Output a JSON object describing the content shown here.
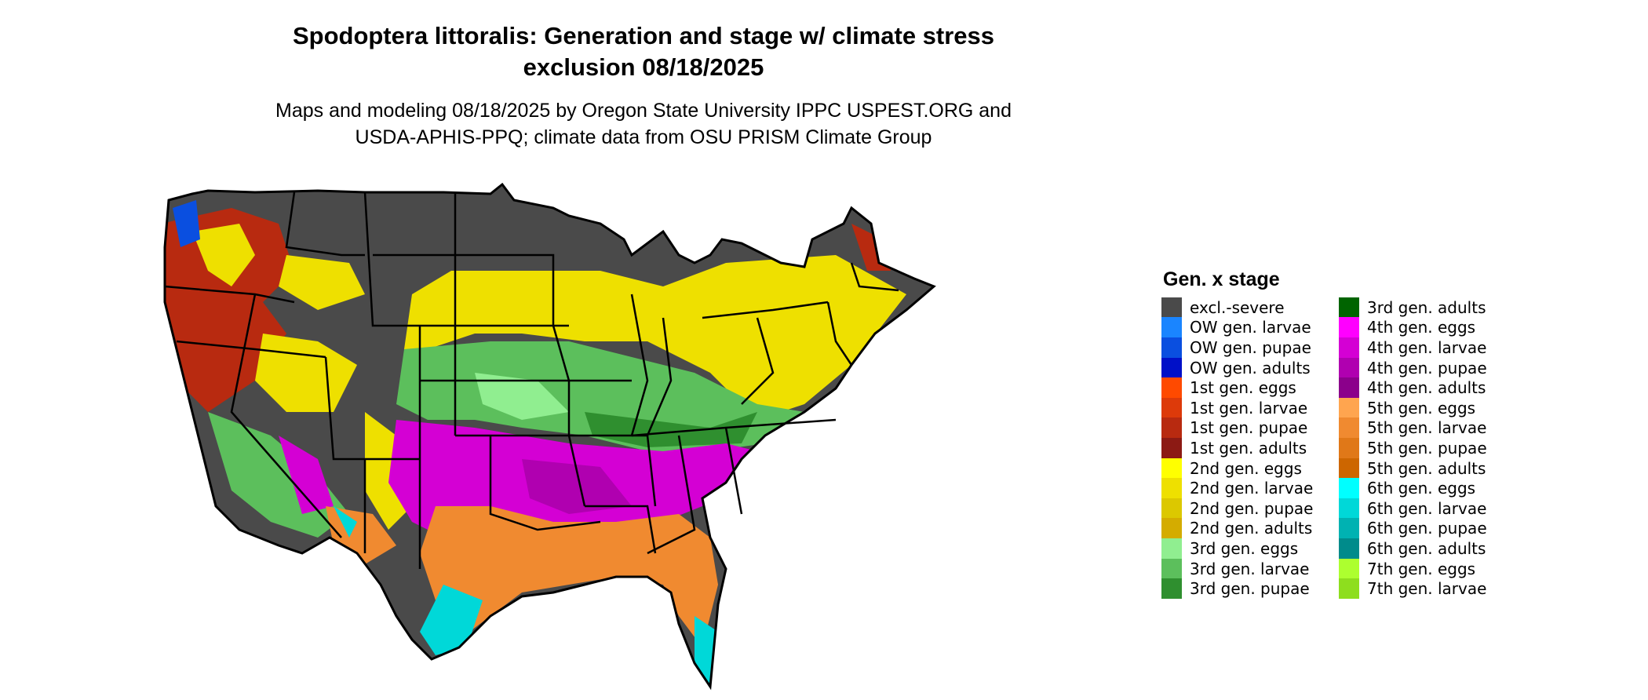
{
  "title": {
    "line1": "Spodoptera littoralis: Generation and stage w/ climate stress",
    "line2": "exclusion 08/18/2025"
  },
  "subtitle": {
    "line1": "Maps and modeling 08/18/2025 by Oregon State University IPPC USPEST.ORG and",
    "line2": "USDA-APHIS-PPQ; climate data from OSU PRISM Climate Group"
  },
  "legend": {
    "title": "Gen. x stage",
    "items": [
      {
        "label": "excl.-severe",
        "color": "#4a4a4a"
      },
      {
        "label": "OW gen. larvae",
        "color": "#1a85ff"
      },
      {
        "label": "OW gen. pupae",
        "color": "#0a4fe0"
      },
      {
        "label": "OW gen. adults",
        "color": "#0010c8"
      },
      {
        "label": "1st gen. eggs",
        "color": "#ff4a00"
      },
      {
        "label": "1st gen. larvae",
        "color": "#dd3a0a"
      },
      {
        "label": "1st gen. pupae",
        "color": "#b82a10"
      },
      {
        "label": "1st gen. adults",
        "color": "#8c1a14"
      },
      {
        "label": "2nd gen. eggs",
        "color": "#ffff00"
      },
      {
        "label": "2nd gen. larvae",
        "color": "#eee000"
      },
      {
        "label": "2nd gen. pupae",
        "color": "#dcc800"
      },
      {
        "label": "2nd gen. adults",
        "color": "#d4ac00"
      },
      {
        "label": "3rd gen. eggs",
        "color": "#90ee90"
      },
      {
        "label": "3rd gen. larvae",
        "color": "#5cbf5c"
      },
      {
        "label": "3rd gen. pupae",
        "color": "#2f8f2f"
      },
      {
        "label": "3rd gen. adults",
        "color": "#006400"
      },
      {
        "label": "4th gen. eggs",
        "color": "#ff00ff"
      },
      {
        "label": "4th gen. larvae",
        "color": "#d400d4"
      },
      {
        "label": "4th gen. pupae",
        "color": "#b000b0"
      },
      {
        "label": "4th gen. adults",
        "color": "#8b008b"
      },
      {
        "label": "5th gen. eggs",
        "color": "#ffa54f"
      },
      {
        "label": "5th gen. larvae",
        "color": "#f08a30"
      },
      {
        "label": "5th gen. pupae",
        "color": "#e07818"
      },
      {
        "label": "5th gen. adults",
        "color": "#cd6600"
      },
      {
        "label": "6th gen. eggs",
        "color": "#00ffff"
      },
      {
        "label": "6th gen. larvae",
        "color": "#00d8d8"
      },
      {
        "label": "6th gen. pupae",
        "color": "#00b2b2"
      },
      {
        "label": "6th gen. adults",
        "color": "#008b8b"
      },
      {
        "label": "7th gen. eggs",
        "color": "#adff2f"
      },
      {
        "label": "7th gen. larvae",
        "color": "#8ede1e"
      }
    ]
  }
}
